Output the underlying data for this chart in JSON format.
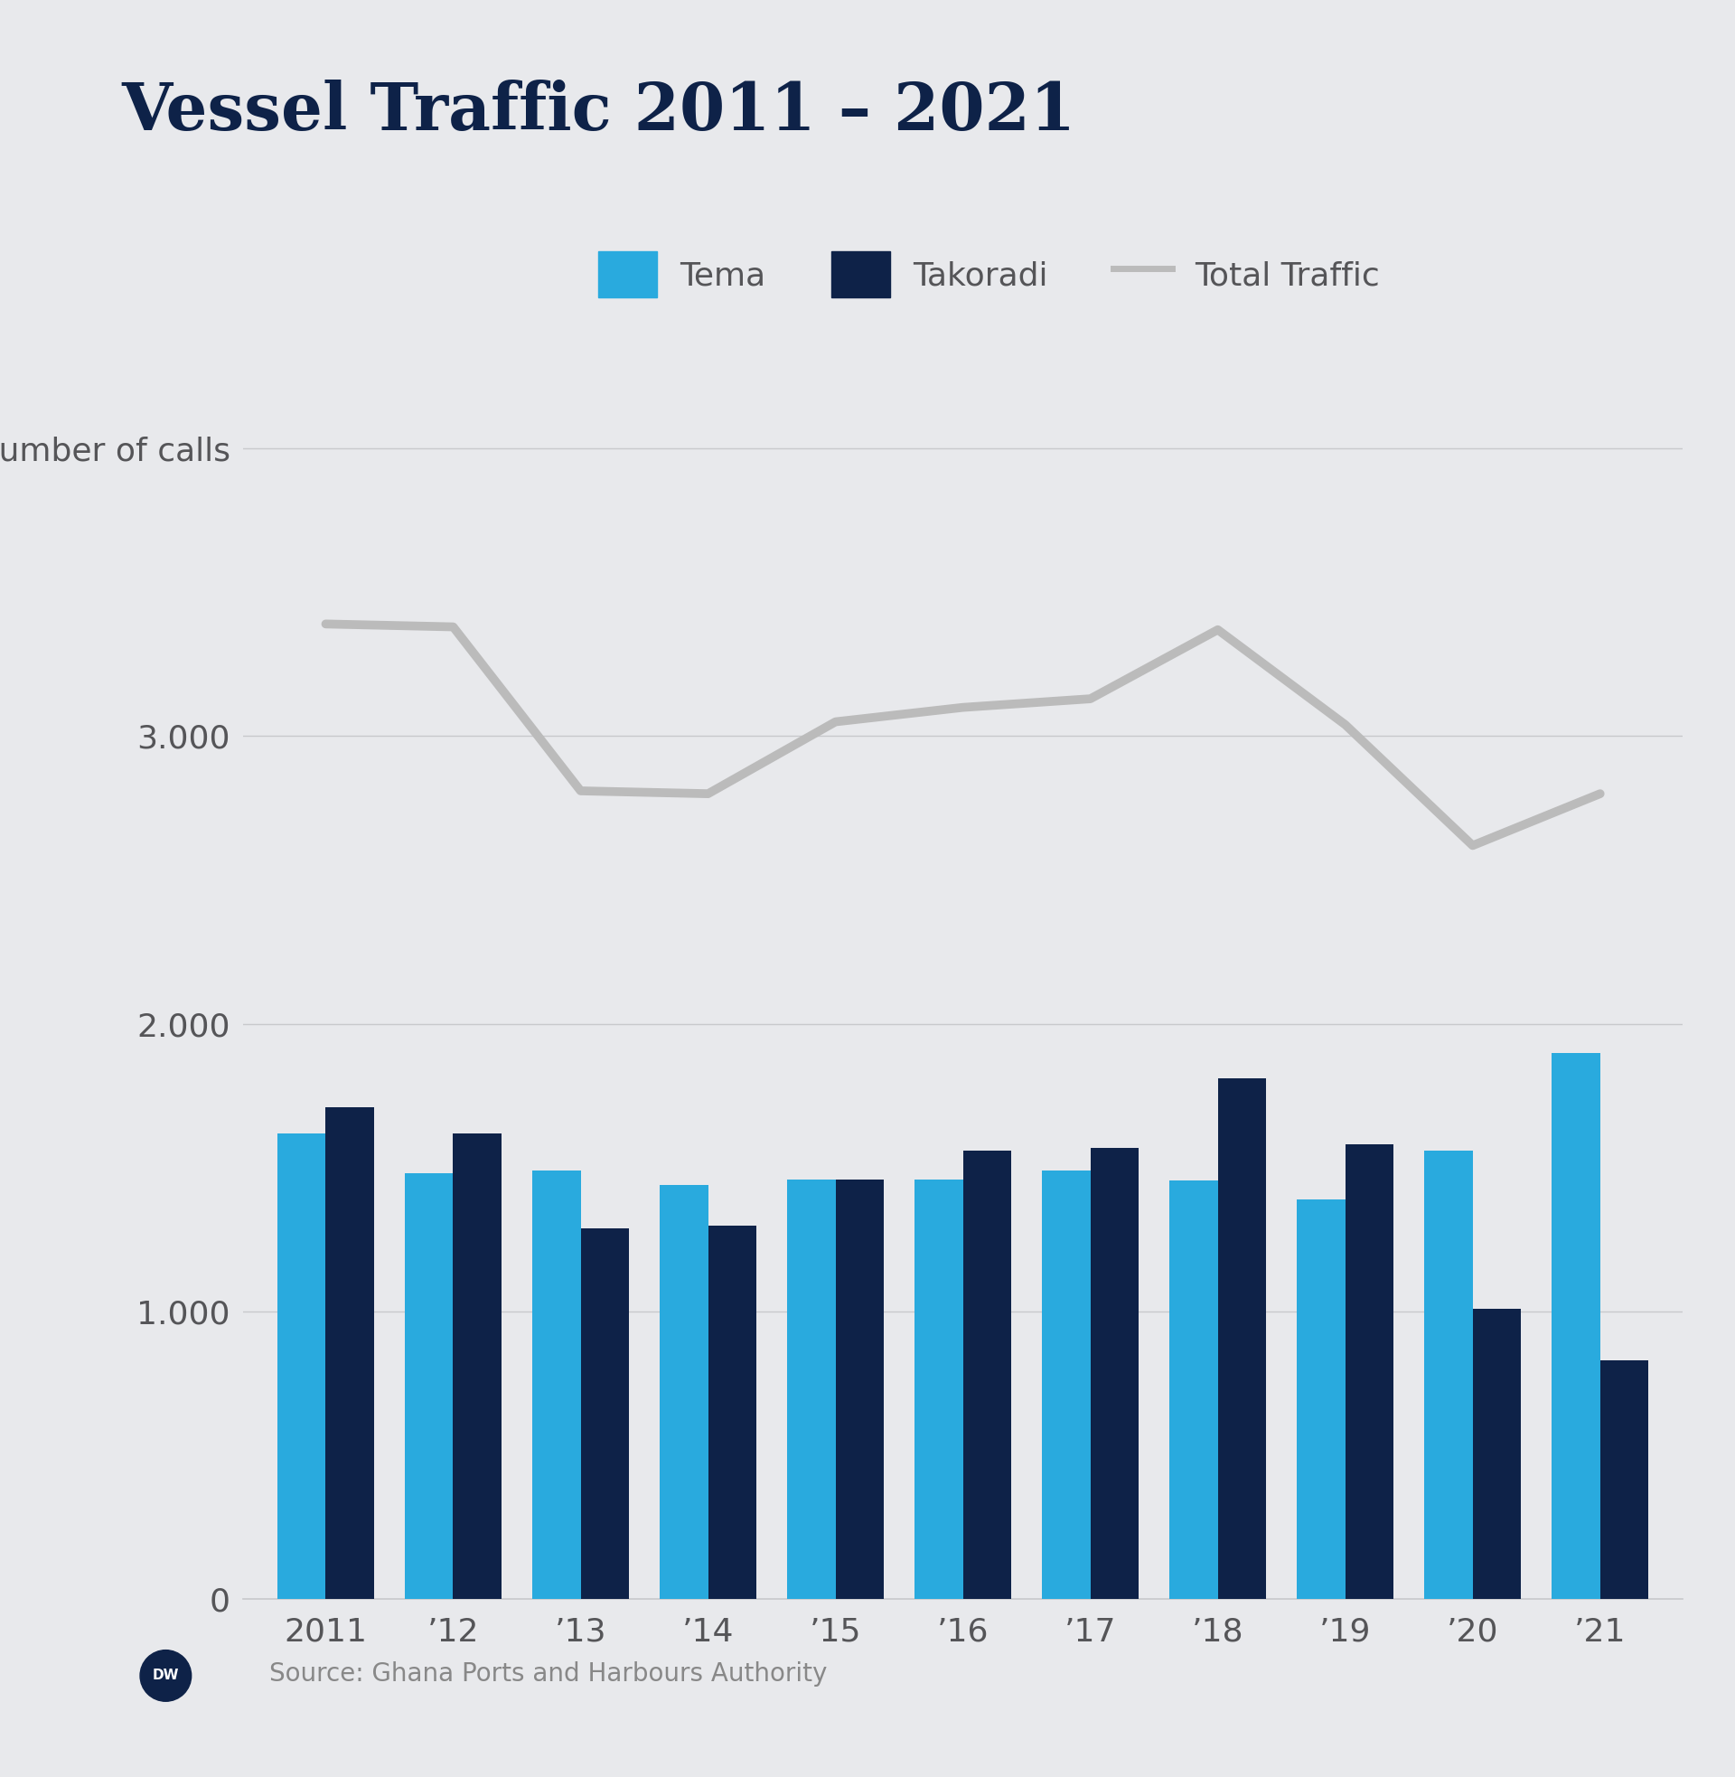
{
  "title": "Vessel Traffic 2011 – 2021",
  "years": [
    2011,
    2012,
    2013,
    2014,
    2015,
    2016,
    2017,
    2018,
    2019,
    2020,
    2021
  ],
  "year_labels": [
    "2011",
    "’12",
    "’13",
    "’14",
    "’15",
    "’16",
    "’17",
    "’18",
    "’19",
    "’20",
    "’21"
  ],
  "tema": [
    1620,
    1480,
    1490,
    1440,
    1460,
    1460,
    1490,
    1455,
    1390,
    1560,
    1900
  ],
  "takoradi": [
    1710,
    1620,
    1290,
    1300,
    1460,
    1560,
    1570,
    1810,
    1580,
    1010,
    830
  ],
  "total_traffic": [
    3390,
    3380,
    2810,
    2800,
    3050,
    3100,
    3130,
    3370,
    3040,
    2620,
    2800
  ],
  "tema_color": "#29AADE",
  "takoradi_color": "#0E2248",
  "total_color": "#BBBBBB",
  "background_color": "#E8E9EC",
  "title_color": "#0E2248",
  "tick_label_color": "#555558",
  "source_text": "Source: Ghana Ports and Harbours Authority",
  "ylim": [
    0,
    4200
  ],
  "yticks": [
    0,
    1000,
    2000,
    3000,
    4000
  ],
  "grid_color": "#C8C9CC",
  "bar_width": 0.38,
  "legend_labels": [
    "Tema",
    "Takoradi",
    "Total Traffic"
  ],
  "title_fontsize": 52,
  "legend_fontsize": 26,
  "tick_fontsize": 26,
  "source_fontsize": 20
}
